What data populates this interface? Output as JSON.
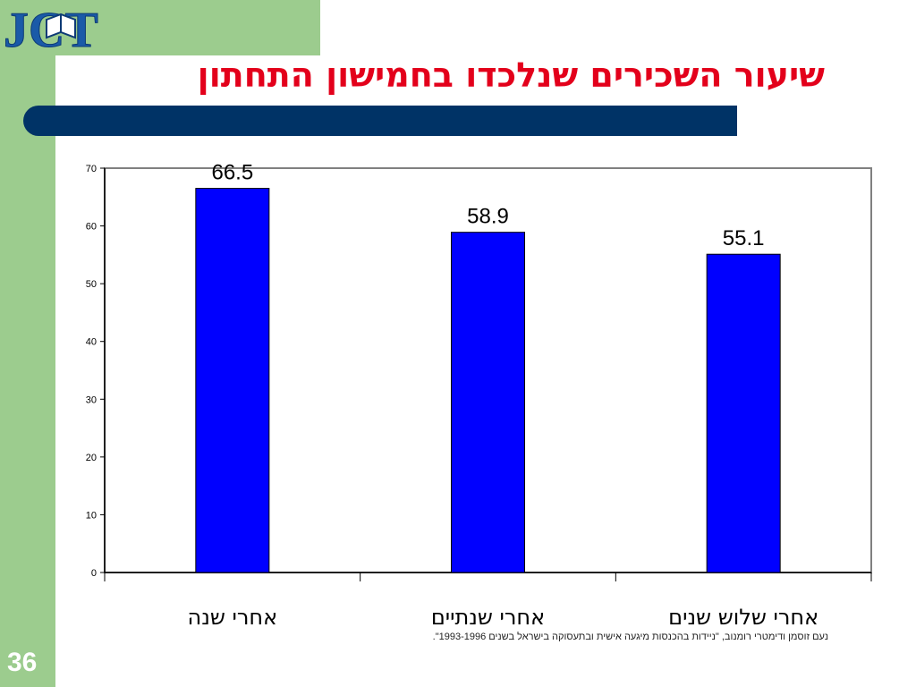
{
  "slide": {
    "title": "שיעור השכירים שנלכדו בחמישון התחתון",
    "logo_text": "JCT",
    "slide_number": "36",
    "source_note": "נעם זוסמן ודימטרי רומנוב, \"ניידות בהכנסות מיגעה אישית ובתעסוקה בישראל בשנים 1993-1996\".",
    "colors": {
      "sidebar": "#9ccc8e",
      "title": "#e3001b",
      "title_bar": "#003366",
      "bar": "#0000ff",
      "logo": "#1a5aa8"
    }
  },
  "chart_data": {
    "type": "bar",
    "categories": [
      "אחרי שנה",
      "אחרי שנתיים",
      "אחרי שלוש שנים"
    ],
    "values": [
      66.5,
      58.9,
      55.1
    ],
    "data_labels": [
      "66.5",
      "58.9",
      "55.1"
    ],
    "title": "",
    "xlabel": "",
    "ylabel": "",
    "ylim": [
      0,
      70
    ],
    "yticks": [
      "0",
      "10",
      "20",
      "30",
      "40",
      "50",
      "60",
      "70"
    ],
    "grid": false,
    "legend": "none",
    "bar_color": "#0000ff"
  }
}
